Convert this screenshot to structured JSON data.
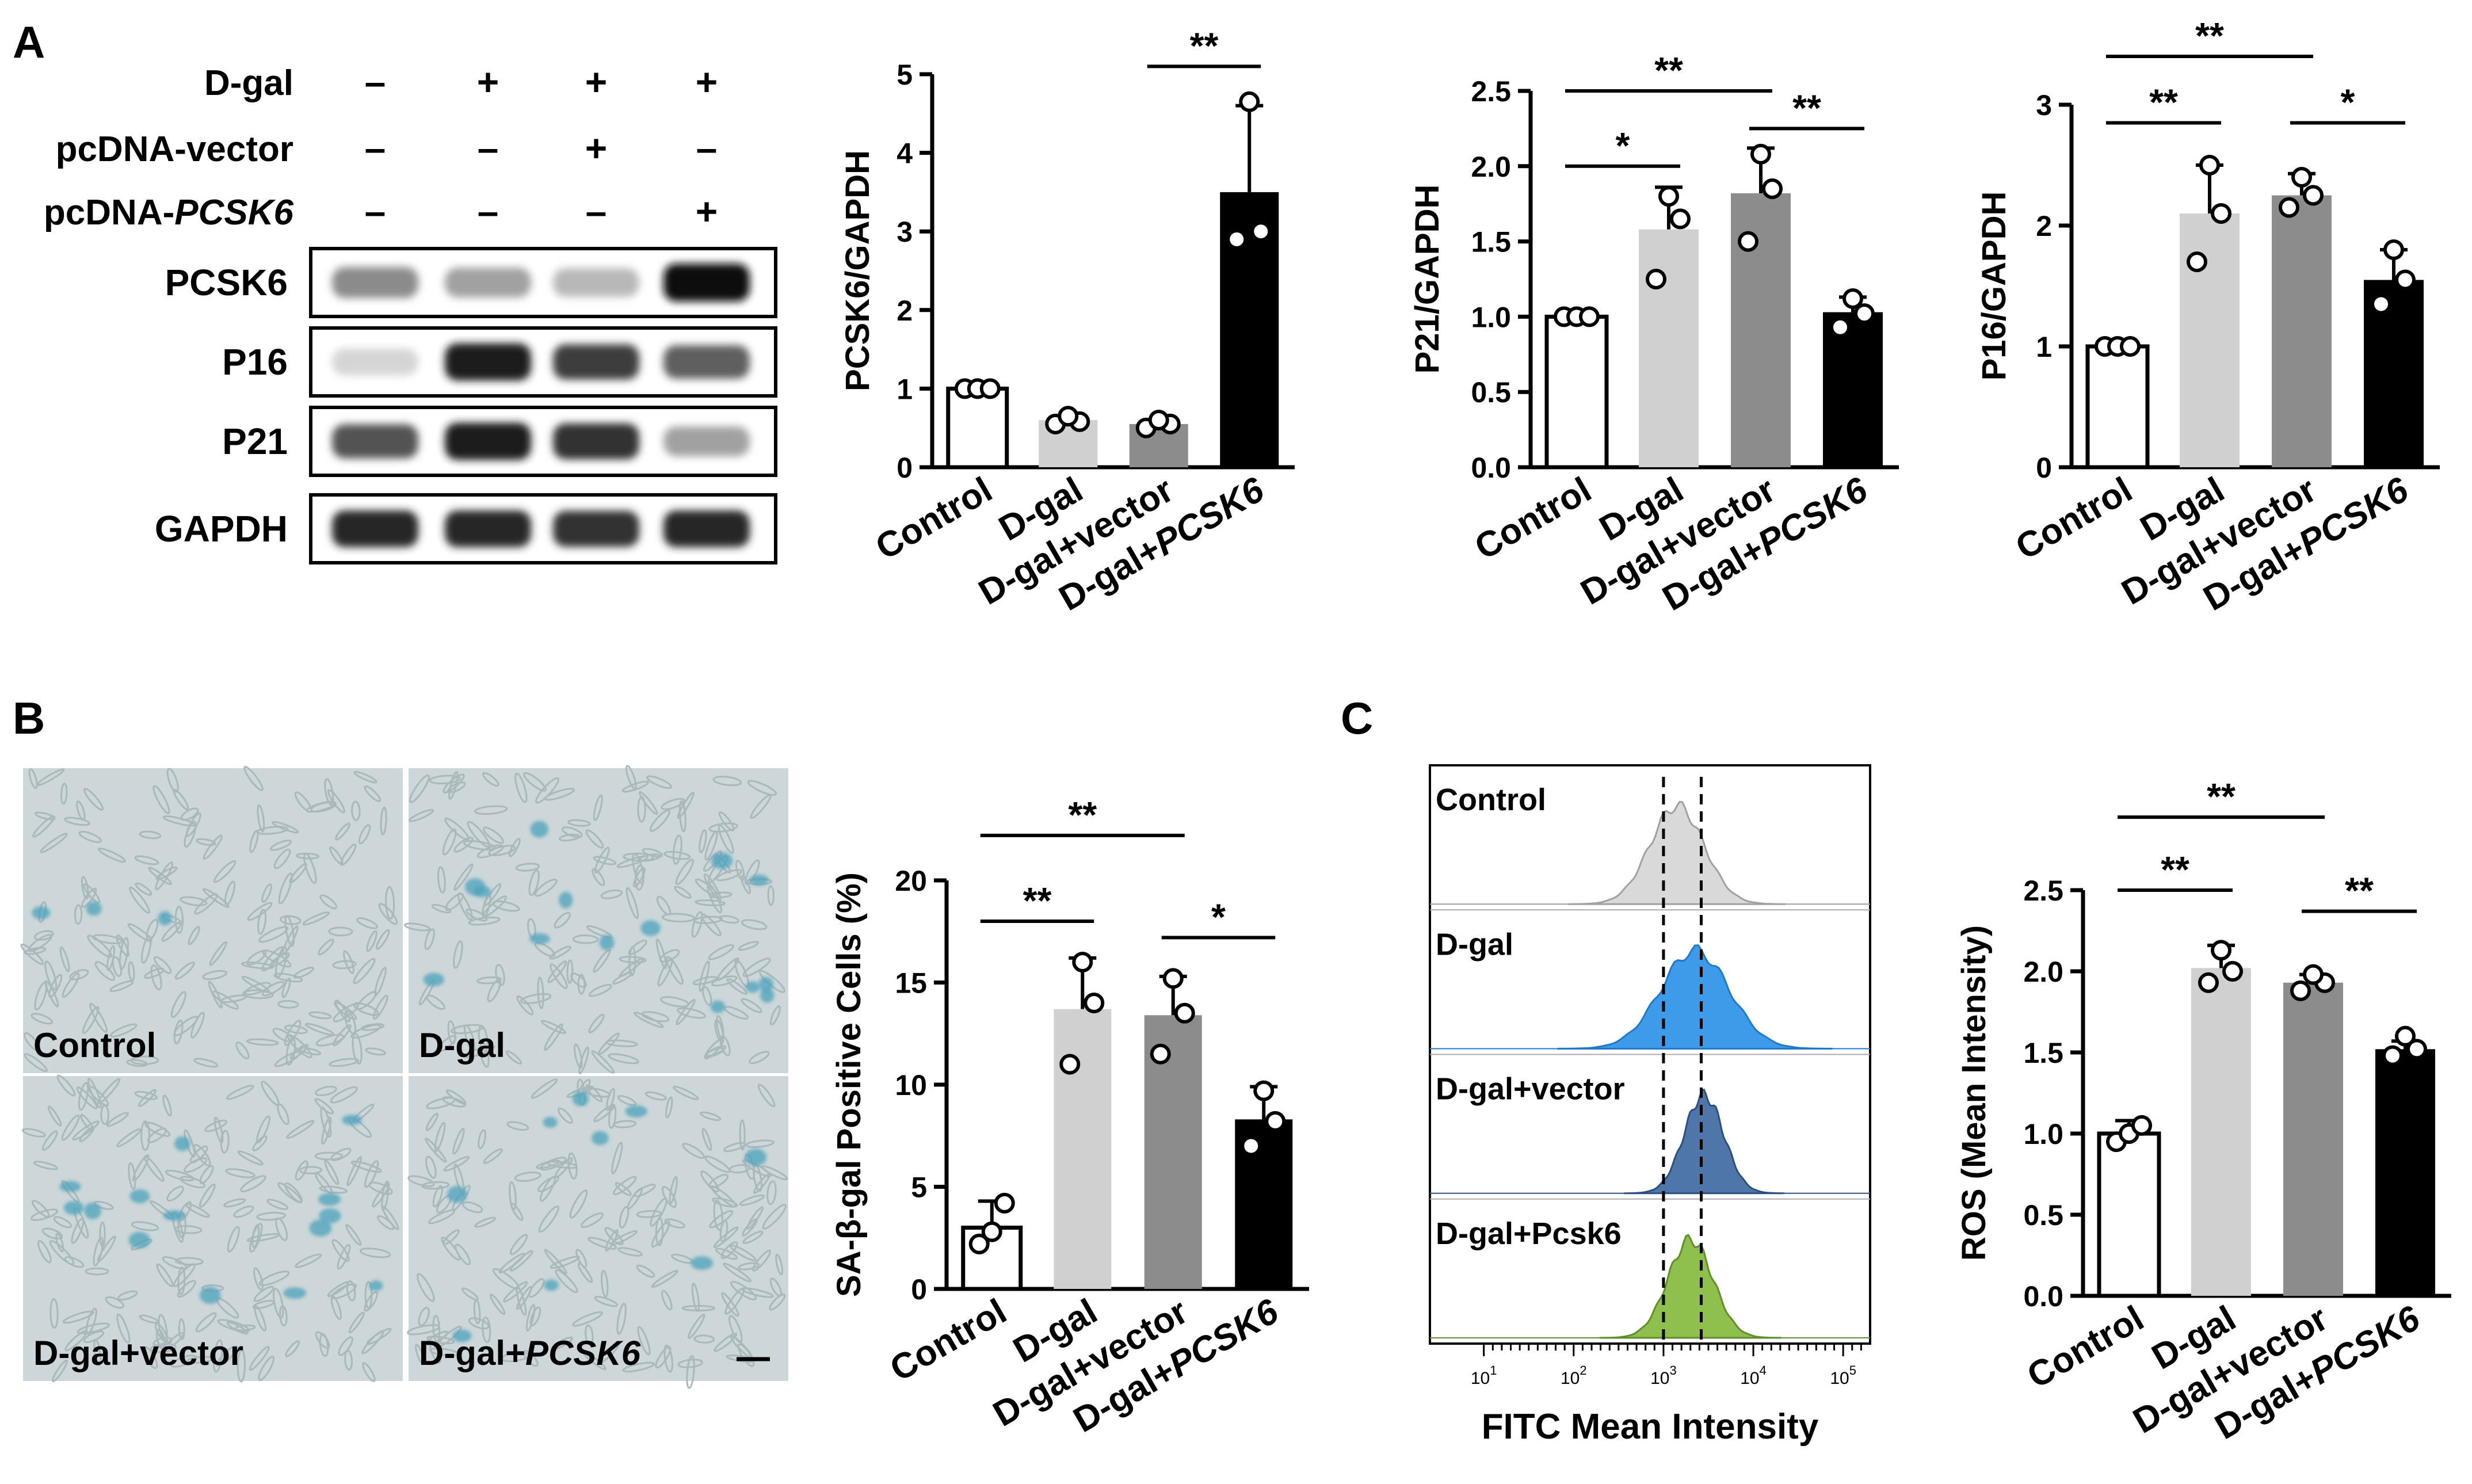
{
  "panels": {
    "a": "A",
    "b": "B",
    "c": "C"
  },
  "western_blot": {
    "treatments": [
      {
        "label": "D-gal",
        "label_italic": "",
        "marks": [
          "–",
          "+",
          "+",
          "+"
        ]
      },
      {
        "label": "pcDNA-vector",
        "label_italic": "",
        "marks": [
          "–",
          "–",
          "+",
          "–"
        ]
      },
      {
        "label": "pcDNA-",
        "label_italic": "PCSK6",
        "marks": [
          "–",
          "–",
          "–",
          "+"
        ]
      }
    ],
    "bands": [
      {
        "name": "PCSK6",
        "intensity": [
          0.45,
          0.35,
          0.25,
          1.0
        ]
      },
      {
        "name": "P16",
        "intensity": [
          0.12,
          0.95,
          0.8,
          0.65
        ]
      },
      {
        "name": "P21",
        "intensity": [
          0.7,
          0.95,
          0.85,
          0.35
        ]
      },
      {
        "name": "GAPDH",
        "intensity": [
          0.9,
          0.9,
          0.85,
          0.9
        ]
      }
    ]
  },
  "categories": [
    "Control",
    "D-gal",
    "D-gal+vector",
    "D-gal+"
  ],
  "category_italic_suffix": [
    "",
    "",
    "",
    "PCSK6"
  ],
  "bar_colors": [
    "#ffffff",
    "#d0d0d0",
    "#8c8c8c",
    "#000000"
  ],
  "microscopy": {
    "tiles": [
      {
        "label": "Control",
        "label_italic": "",
        "blue_cells": 3
      },
      {
        "label": "D-gal",
        "label_italic": "",
        "blue_cells": 14
      },
      {
        "label": "D-gal+vector",
        "label_italic": "",
        "blue_cells": 14
      },
      {
        "label": "D-gal+",
        "label_italic": "PCSK6",
        "blue_cells": 9
      }
    ]
  },
  "flow": {
    "labels": [
      "Control",
      "D-gal",
      "D-gal+vector",
      "D-gal+Pcsk6"
    ],
    "fill_colors": [
      "#d9d9d9",
      "#3d9be9",
      "#4f76a8",
      "#8fbf4d"
    ],
    "edge_colors": [
      "#a0a0a0",
      "#1f78c8",
      "#2b4f80",
      "#5e8f2a"
    ],
    "peak_log10": [
      3.15,
      3.35,
      3.45,
      3.3
    ],
    "width": [
      0.3,
      0.38,
      0.22,
      0.25
    ],
    "dashed_lines_log10": [
      3.0,
      3.42
    ],
    "x_ticks": [
      {
        "base": "10",
        "exp": "1",
        "log": 1
      },
      {
        "base": "10",
        "exp": "2",
        "log": 2
      },
      {
        "base": "10",
        "exp": "3",
        "log": 3
      },
      {
        "base": "10",
        "exp": "4",
        "log": 4
      },
      {
        "base": "10",
        "exp": "5",
        "log": 5
      }
    ],
    "xlabel": "FITC Mean Intensity",
    "xlim_log10": [
      0.4,
      5.3
    ]
  },
  "chart_data": [
    {
      "id": "pcsk6",
      "type": "bar",
      "ylabel": "PCSK6/GAPDH",
      "ylim": [
        0,
        5
      ],
      "yticks": [
        0,
        1,
        2,
        3,
        4,
        5
      ],
      "ytick_labels": [
        "0",
        "1",
        "2",
        "3",
        "4",
        "5"
      ],
      "values": [
        1.0,
        0.6,
        0.55,
        3.5
      ],
      "errors": [
        0.0,
        0.05,
        0.05,
        1.1
      ],
      "points": [
        [
          1.0,
          1.0,
          1.0
        ],
        [
          0.55,
          0.58,
          0.65
        ],
        [
          0.5,
          0.55,
          0.6
        ],
        [
          2.9,
          3.0,
          4.65
        ]
      ],
      "significance": [
        {
          "from": 2,
          "to": 3,
          "label": "**",
          "y": 5.1
        }
      ]
    },
    {
      "id": "p21",
      "type": "bar",
      "ylabel": "P21/GAPDH",
      "ylim": [
        0,
        2.5
      ],
      "yticks": [
        0,
        0.5,
        1.0,
        1.5,
        2.0,
        2.5
      ],
      "ytick_labels": [
        "0.0",
        "0.5",
        "1.0",
        "1.5",
        "2.0",
        "2.5"
      ],
      "values": [
        1.0,
        1.58,
        1.82,
        1.03
      ],
      "errors": [
        0.01,
        0.28,
        0.3,
        0.1
      ],
      "points": [
        [
          1.0,
          1.0,
          1.0
        ],
        [
          1.25,
          1.65,
          1.8
        ],
        [
          1.5,
          1.85,
          2.08
        ],
        [
          0.93,
          1.02,
          1.12
        ]
      ],
      "significance": [
        {
          "from": 0,
          "to": 1,
          "label": "*",
          "y": 2.0
        },
        {
          "from": 0,
          "to": 2,
          "label": "**",
          "y": 2.5
        },
        {
          "from": 2,
          "to": 3,
          "label": "**",
          "y": 2.25
        }
      ]
    },
    {
      "id": "p16",
      "type": "bar",
      "ylabel": "P16/GAPDH",
      "ylim": [
        0,
        3
      ],
      "yticks": [
        0,
        1,
        2,
        3
      ],
      "ytick_labels": [
        "0",
        "1",
        "2",
        "3"
      ],
      "values": [
        1.0,
        2.1,
        2.25,
        1.55
      ],
      "errors": [
        0.01,
        0.4,
        0.18,
        0.25
      ],
      "points": [
        [
          1.0,
          1.0,
          1.0
        ],
        [
          1.7,
          2.1,
          2.5
        ],
        [
          2.15,
          2.25,
          2.4
        ],
        [
          1.35,
          1.55,
          1.8
        ]
      ],
      "significance": [
        {
          "from": 0,
          "to": 1,
          "label": "**",
          "y": 2.85
        },
        {
          "from": 0,
          "to": 2,
          "label": "**",
          "y": 3.4
        },
        {
          "from": 2,
          "to": 3,
          "label": "*",
          "y": 2.85
        }
      ]
    },
    {
      "id": "sagal",
      "type": "bar",
      "ylabel": "SA-β-gal Positive Cells (%)",
      "ylim": [
        0,
        20
      ],
      "yticks": [
        0,
        5,
        10,
        15,
        20
      ],
      "ytick_labels": [
        "0",
        "5",
        "10",
        "15",
        "20"
      ],
      "values": [
        3.0,
        13.7,
        13.4,
        8.3
      ],
      "errors": [
        1.3,
        2.5,
        1.9,
        1.6
      ],
      "points": [
        [
          2.2,
          2.8,
          4.2
        ],
        [
          11.0,
          14.0,
          16.0
        ],
        [
          11.5,
          13.5,
          15.2
        ],
        [
          7.0,
          8.2,
          9.7
        ]
      ],
      "significance": [
        {
          "from": 0,
          "to": 1,
          "label": "**",
          "y": 18.0
        },
        {
          "from": 0,
          "to": 2,
          "label": "**",
          "y": 22.2
        },
        {
          "from": 2,
          "to": 3,
          "label": "*",
          "y": 17.2
        }
      ]
    },
    {
      "id": "ros",
      "type": "bar",
      "ylabel": "ROS (Mean Intensity)",
      "ylim": [
        0,
        2.5
      ],
      "yticks": [
        0,
        0.5,
        1.0,
        1.5,
        2.0,
        2.5
      ],
      "ytick_labels": [
        "0.0",
        "0.5",
        "1.0",
        "1.5",
        "2.0",
        "2.5"
      ],
      "values": [
        1.0,
        2.02,
        1.93,
        1.52
      ],
      "errors": [
        0.08,
        0.14,
        0.05,
        0.05
      ],
      "points": [
        [
          0.95,
          1.0,
          1.05
        ],
        [
          1.93,
          2.0,
          2.13
        ],
        [
          1.88,
          1.93,
          1.98
        ],
        [
          1.48,
          1.52,
          1.6
        ]
      ],
      "significance": [
        {
          "from": 0,
          "to": 1,
          "label": "**",
          "y": 2.5
        },
        {
          "from": 0,
          "to": 2,
          "label": "**",
          "y": 2.95
        },
        {
          "from": 2,
          "to": 3,
          "label": "**",
          "y": 2.37
        }
      ]
    }
  ]
}
